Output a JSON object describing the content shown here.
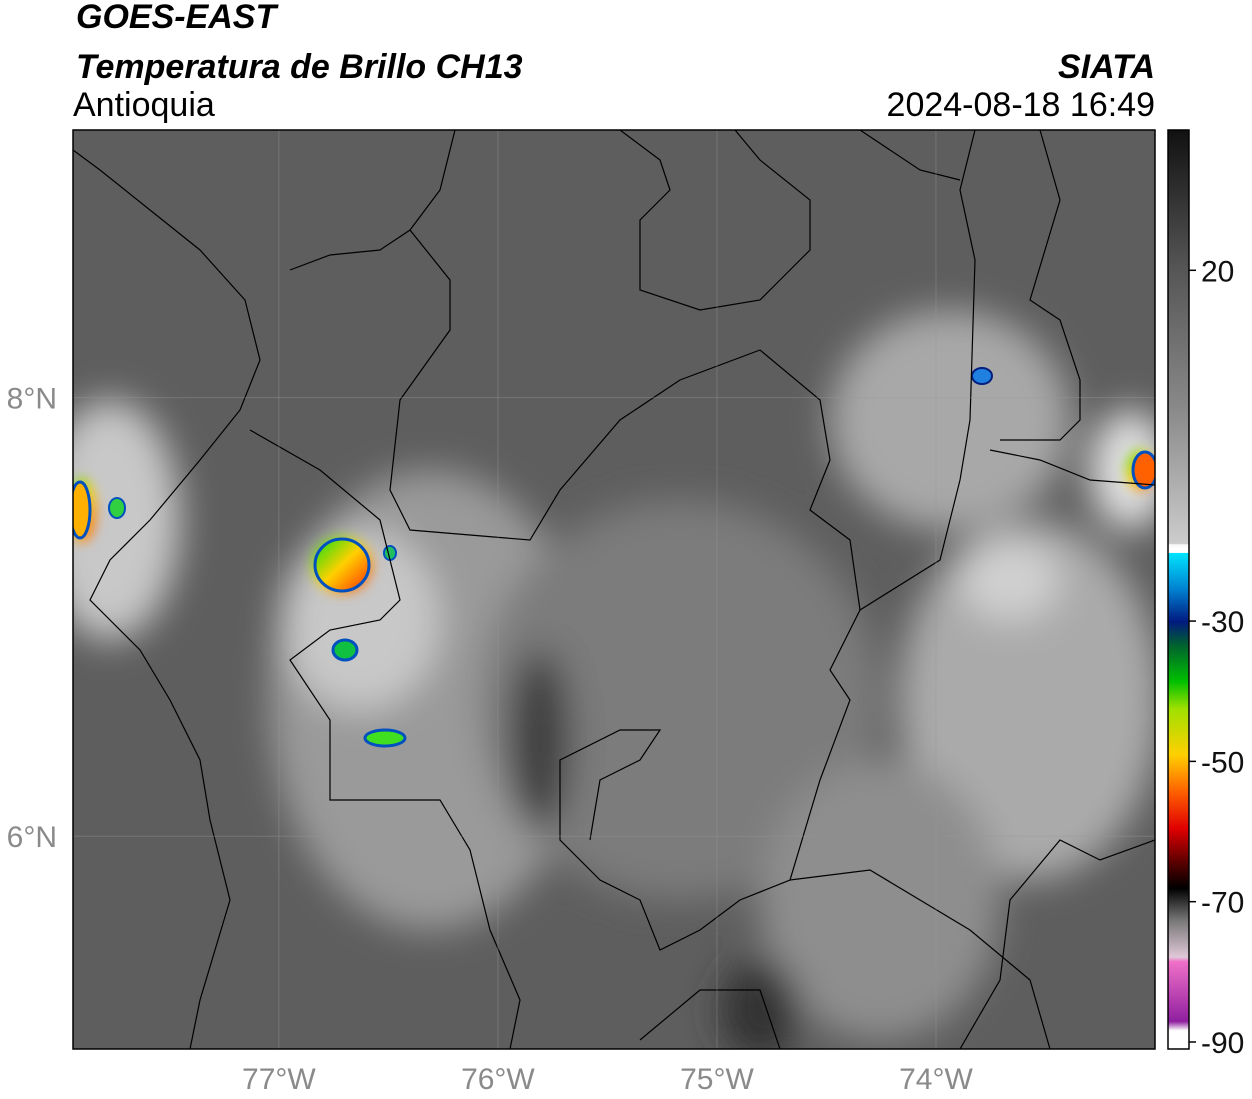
{
  "header": {
    "title": "GOES-EAST",
    "subtitle": "Temperatura de Brillo CH13",
    "region": "Antioquia",
    "source": "SIATA",
    "datetime": "2024-08-18 16:49"
  },
  "map": {
    "xlim": [
      -77.94,
      -73.0
    ],
    "ylim": [
      5.03,
      9.22
    ],
    "xticks": [
      {
        "value": -77,
        "label": "77°W"
      },
      {
        "value": -76,
        "label": "76°W"
      },
      {
        "value": -75,
        "label": "75°W"
      },
      {
        "value": -74,
        "label": "74°W"
      }
    ],
    "yticks": [
      {
        "value": 8,
        "label": "8°N"
      },
      {
        "value": 6,
        "label": "6°N"
      }
    ],
    "grid": true
  },
  "colorbar": {
    "lim": [
      -91,
      40
    ],
    "ticks": [
      20,
      -30,
      -50,
      -70,
      -90
    ]
  }
}
